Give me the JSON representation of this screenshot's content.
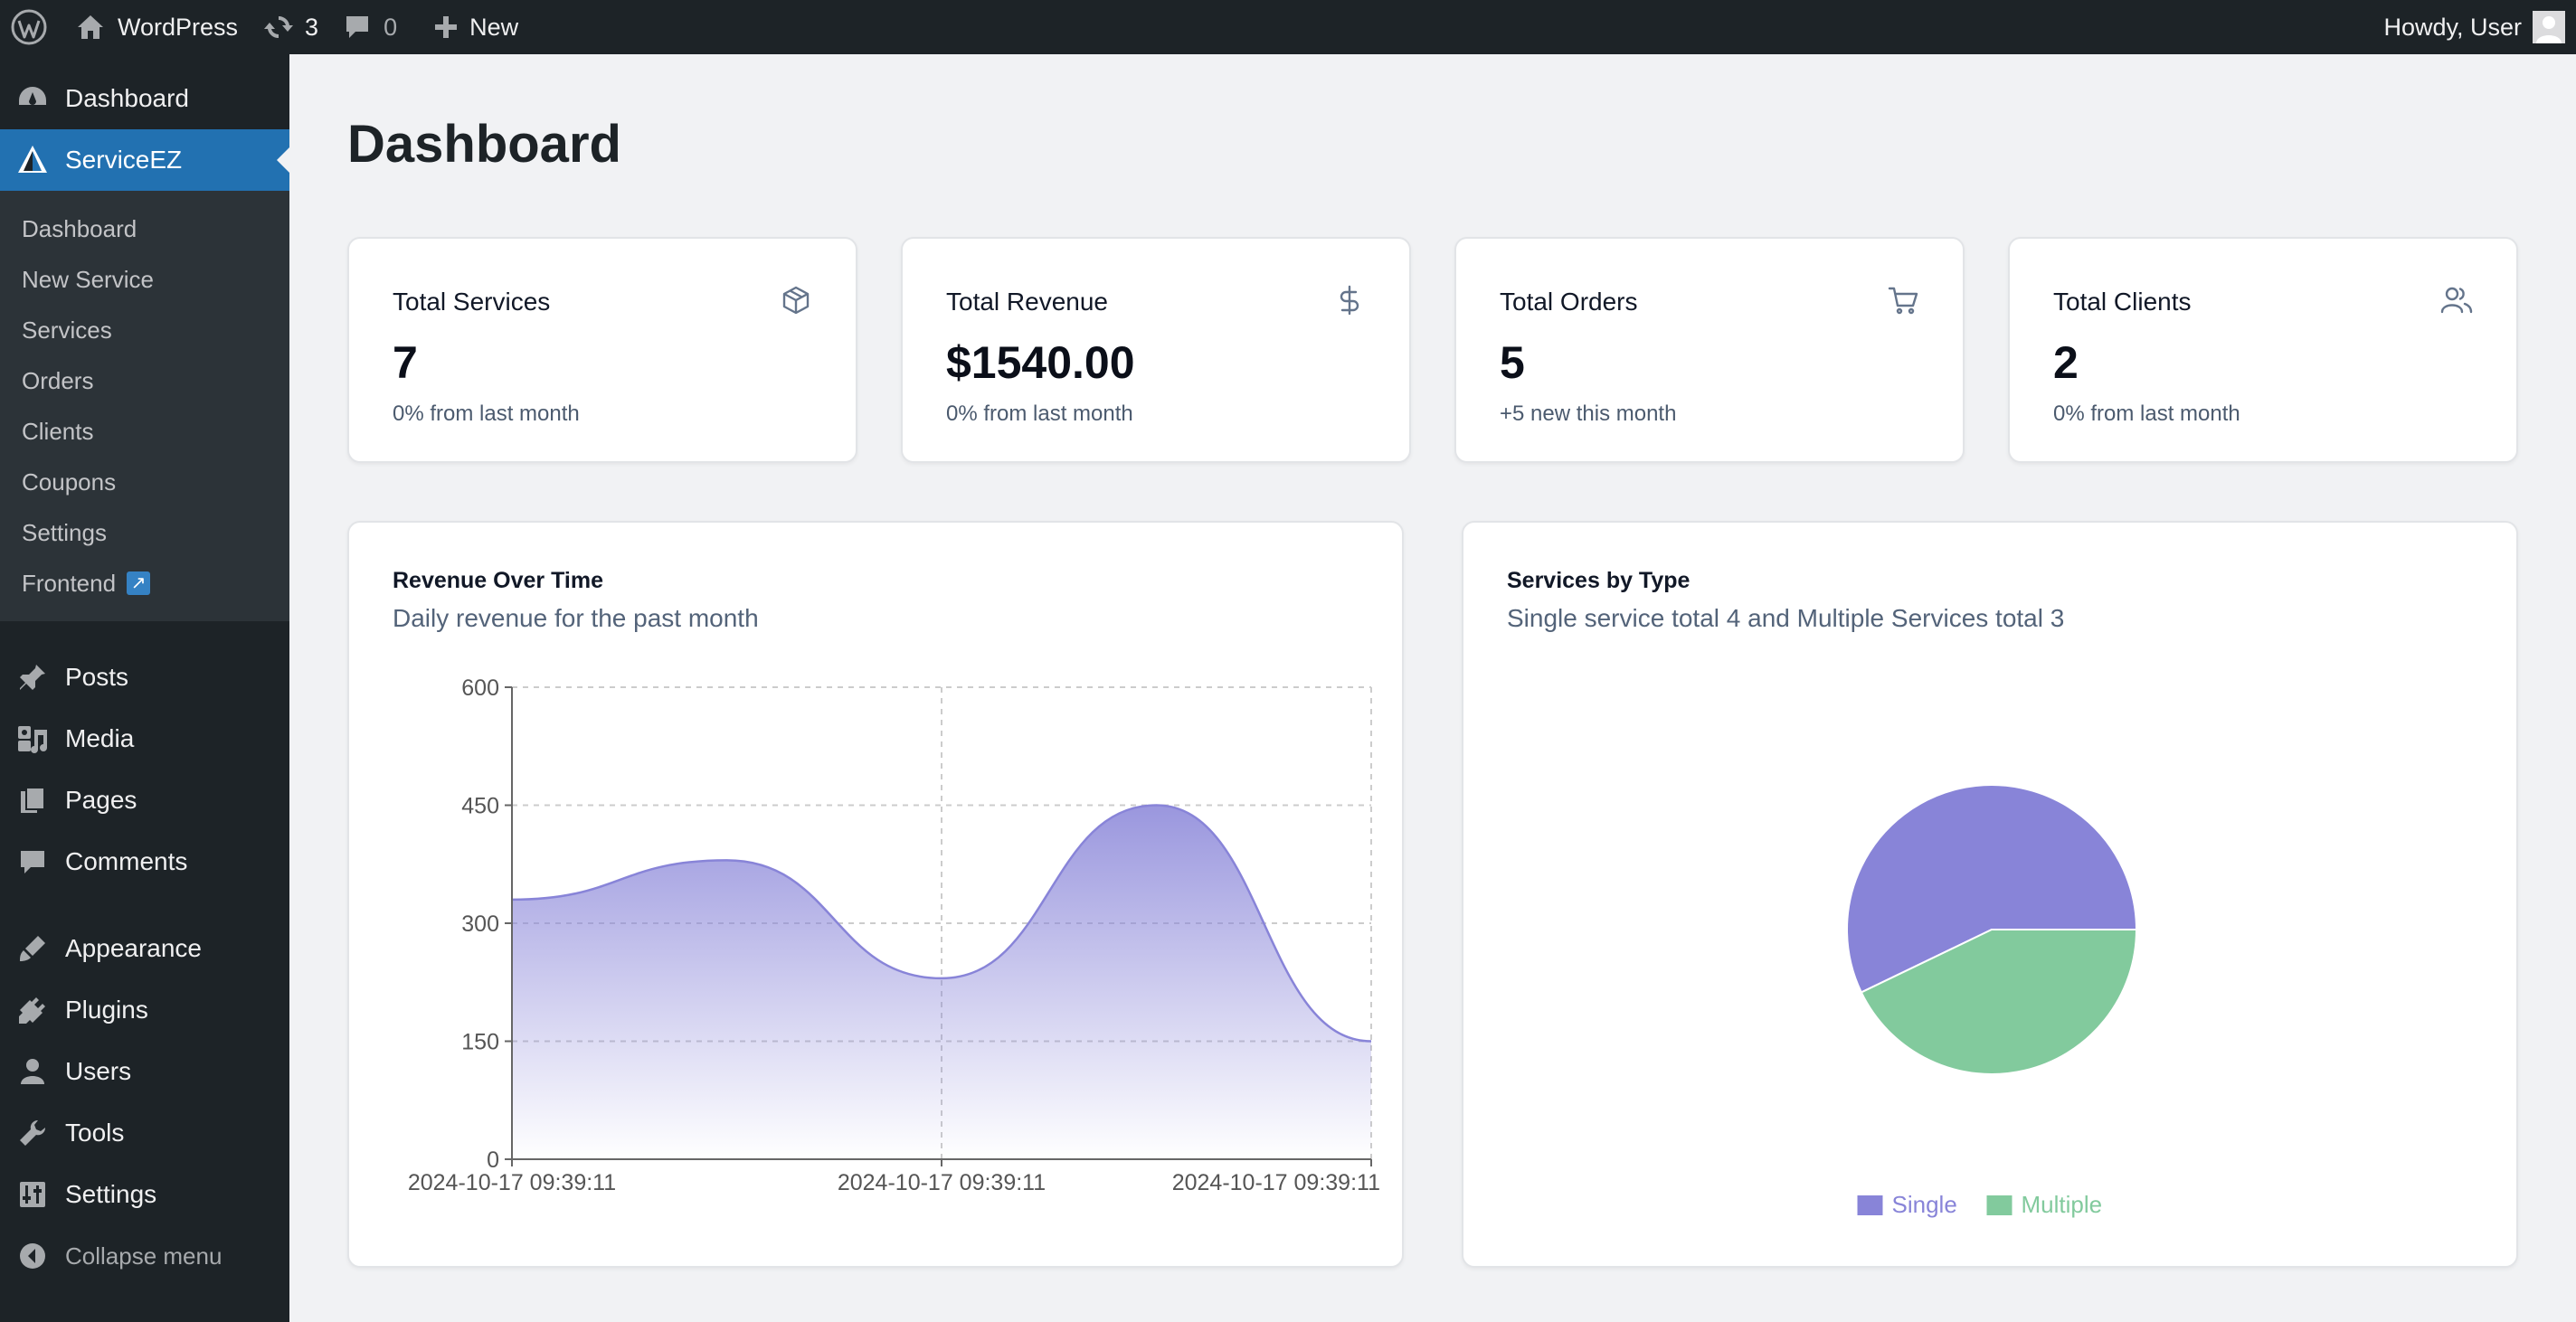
{
  "adminbar": {
    "site_name": "WordPress",
    "updates_count": "3",
    "comments_count": "0",
    "new_label": "New",
    "greeting": "Howdy, User"
  },
  "sidebar": {
    "top_item": "Dashboard",
    "plugin_item": "ServiceEZ",
    "submenu": [
      "Dashboard",
      "New Service",
      "Services",
      "Orders",
      "Clients",
      "Coupons",
      "Settings",
      "Frontend"
    ],
    "items": [
      "Posts",
      "Media",
      "Pages",
      "Comments",
      "Appearance",
      "Plugins",
      "Users",
      "Tools",
      "Settings"
    ],
    "collapse": "Collapse menu"
  },
  "page": {
    "title": "Dashboard"
  },
  "stats": [
    {
      "title": "Total Services",
      "value": "7",
      "sub": "0% from last month",
      "icon": "box-icon"
    },
    {
      "title": "Total Revenue",
      "value": "$1540.00",
      "sub": "0% from last month",
      "icon": "dollar-icon"
    },
    {
      "title": "Total Orders",
      "value": "5",
      "sub": "+5 new this month",
      "icon": "cart-icon"
    },
    {
      "title": "Total Clients",
      "value": "2",
      "sub": "0% from last month",
      "icon": "users-icon"
    }
  ],
  "colors": {
    "accent": "#2271b1",
    "series_purple": "#8884d8",
    "series_green": "#82ca9d"
  },
  "revenue_card": {
    "title": "Revenue Over Time",
    "subtitle": "Daily revenue for the past month"
  },
  "type_card": {
    "title": "Services by Type",
    "subtitle": "Single service total 4 and Multiple Services total 3"
  },
  "chart_data": [
    {
      "type": "area",
      "x": [
        "2024-10-17 09:39:11",
        "2024-10-17 09:39:11",
        "2024-10-17 09:39:11",
        "2024-10-17 09:39:11",
        "2024-10-17 09:39:11"
      ],
      "x_tick_labels": [
        "2024-10-17 09:39:11",
        "2024-10-17 09:39:11",
        "2024-10-17 09:39:11"
      ],
      "values": [
        330,
        380,
        230,
        450,
        150
      ],
      "yticks": [
        0,
        150,
        300,
        450,
        600
      ],
      "ylim": [
        0,
        600
      ],
      "grid": true
    },
    {
      "type": "pie",
      "categories": [
        "Single",
        "Multiple"
      ],
      "values": [
        4,
        3
      ],
      "legend": "bottom"
    }
  ]
}
